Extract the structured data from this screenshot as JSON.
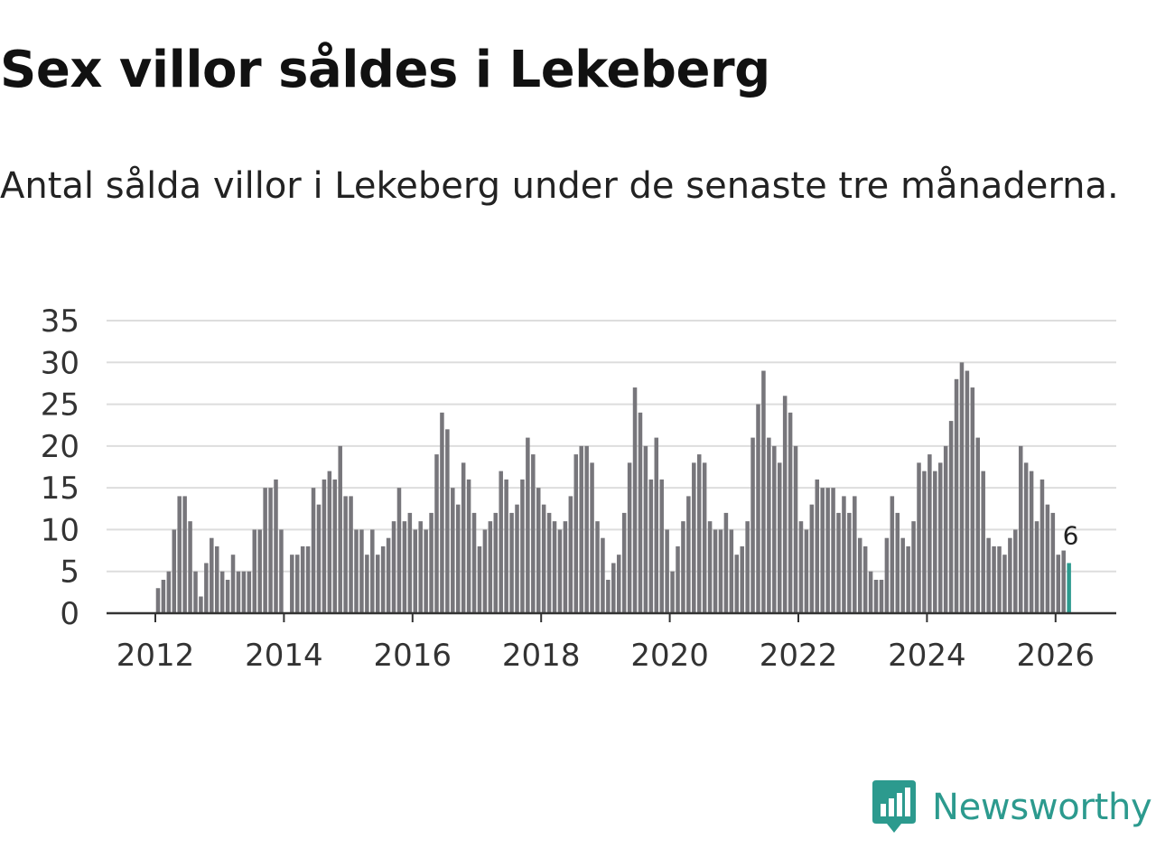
{
  "title": "Sex villor såldes i Lekeberg",
  "subtitle": "Antal sålda villor i Lekeberg under de senaste tre månaderna.",
  "brand": {
    "name": "Newsworthy",
    "color": "#2c9a8e",
    "icon": "newsworthy-logo-icon"
  },
  "chart_data": {
    "type": "bar",
    "title": "Sex villor såldes i Lekeberg",
    "subtitle": "Antal sålda villor i Lekeberg under de senaste tre månaderna.",
    "xlabel": "",
    "ylabel": "",
    "ylim": [
      0,
      35
    ],
    "yticks": [
      0,
      5,
      10,
      15,
      20,
      25,
      30,
      35
    ],
    "xticks": [
      "2012",
      "2014",
      "2016",
      "2018",
      "2020",
      "2022",
      "2024",
      "2026"
    ],
    "grid": true,
    "start_year": 2012,
    "start_month": 1,
    "bar_color": "#77767b",
    "highlight_color": "#2c9a8e",
    "highlight_label": "6",
    "series": [
      {
        "name": "Antal sålda villor",
        "values": [
          3,
          4,
          5,
          10,
          14,
          14,
          11,
          5,
          2,
          6,
          9,
          8,
          5,
          4,
          7,
          5,
          5,
          5,
          10,
          10,
          15,
          15,
          16,
          10,
          null,
          7,
          7,
          8,
          8,
          15,
          13,
          16,
          17,
          16,
          20,
          14,
          14,
          10,
          10,
          7,
          10,
          7,
          8,
          9,
          11,
          15,
          11,
          12,
          10,
          11,
          10,
          12,
          19,
          24,
          22,
          15,
          13,
          18,
          16,
          12,
          8,
          10,
          11,
          12,
          17,
          16,
          12,
          13,
          16,
          21,
          19,
          15,
          13,
          12,
          11,
          10,
          11,
          14,
          19,
          20,
          20,
          18,
          11,
          9,
          4,
          6,
          7,
          12,
          18,
          27,
          24,
          20,
          16,
          21,
          16,
          10,
          5,
          8,
          11,
          14,
          18,
          19,
          18,
          11,
          10,
          10,
          12,
          10,
          7,
          8,
          11,
          21,
          25,
          29,
          21,
          20,
          18,
          26,
          24,
          20,
          11,
          10,
          13,
          16,
          15,
          15,
          15,
          12,
          14,
          12,
          14,
          9,
          8,
          5,
          4,
          4,
          9,
          14,
          12,
          9,
          8,
          11,
          18,
          17,
          19,
          17,
          18,
          20,
          23,
          28,
          30,
          29,
          27,
          21,
          17,
          9,
          8,
          8,
          7,
          9,
          10,
          20,
          18,
          17,
          11,
          16,
          13,
          12,
          7,
          7.5,
          6
        ]
      }
    ]
  }
}
